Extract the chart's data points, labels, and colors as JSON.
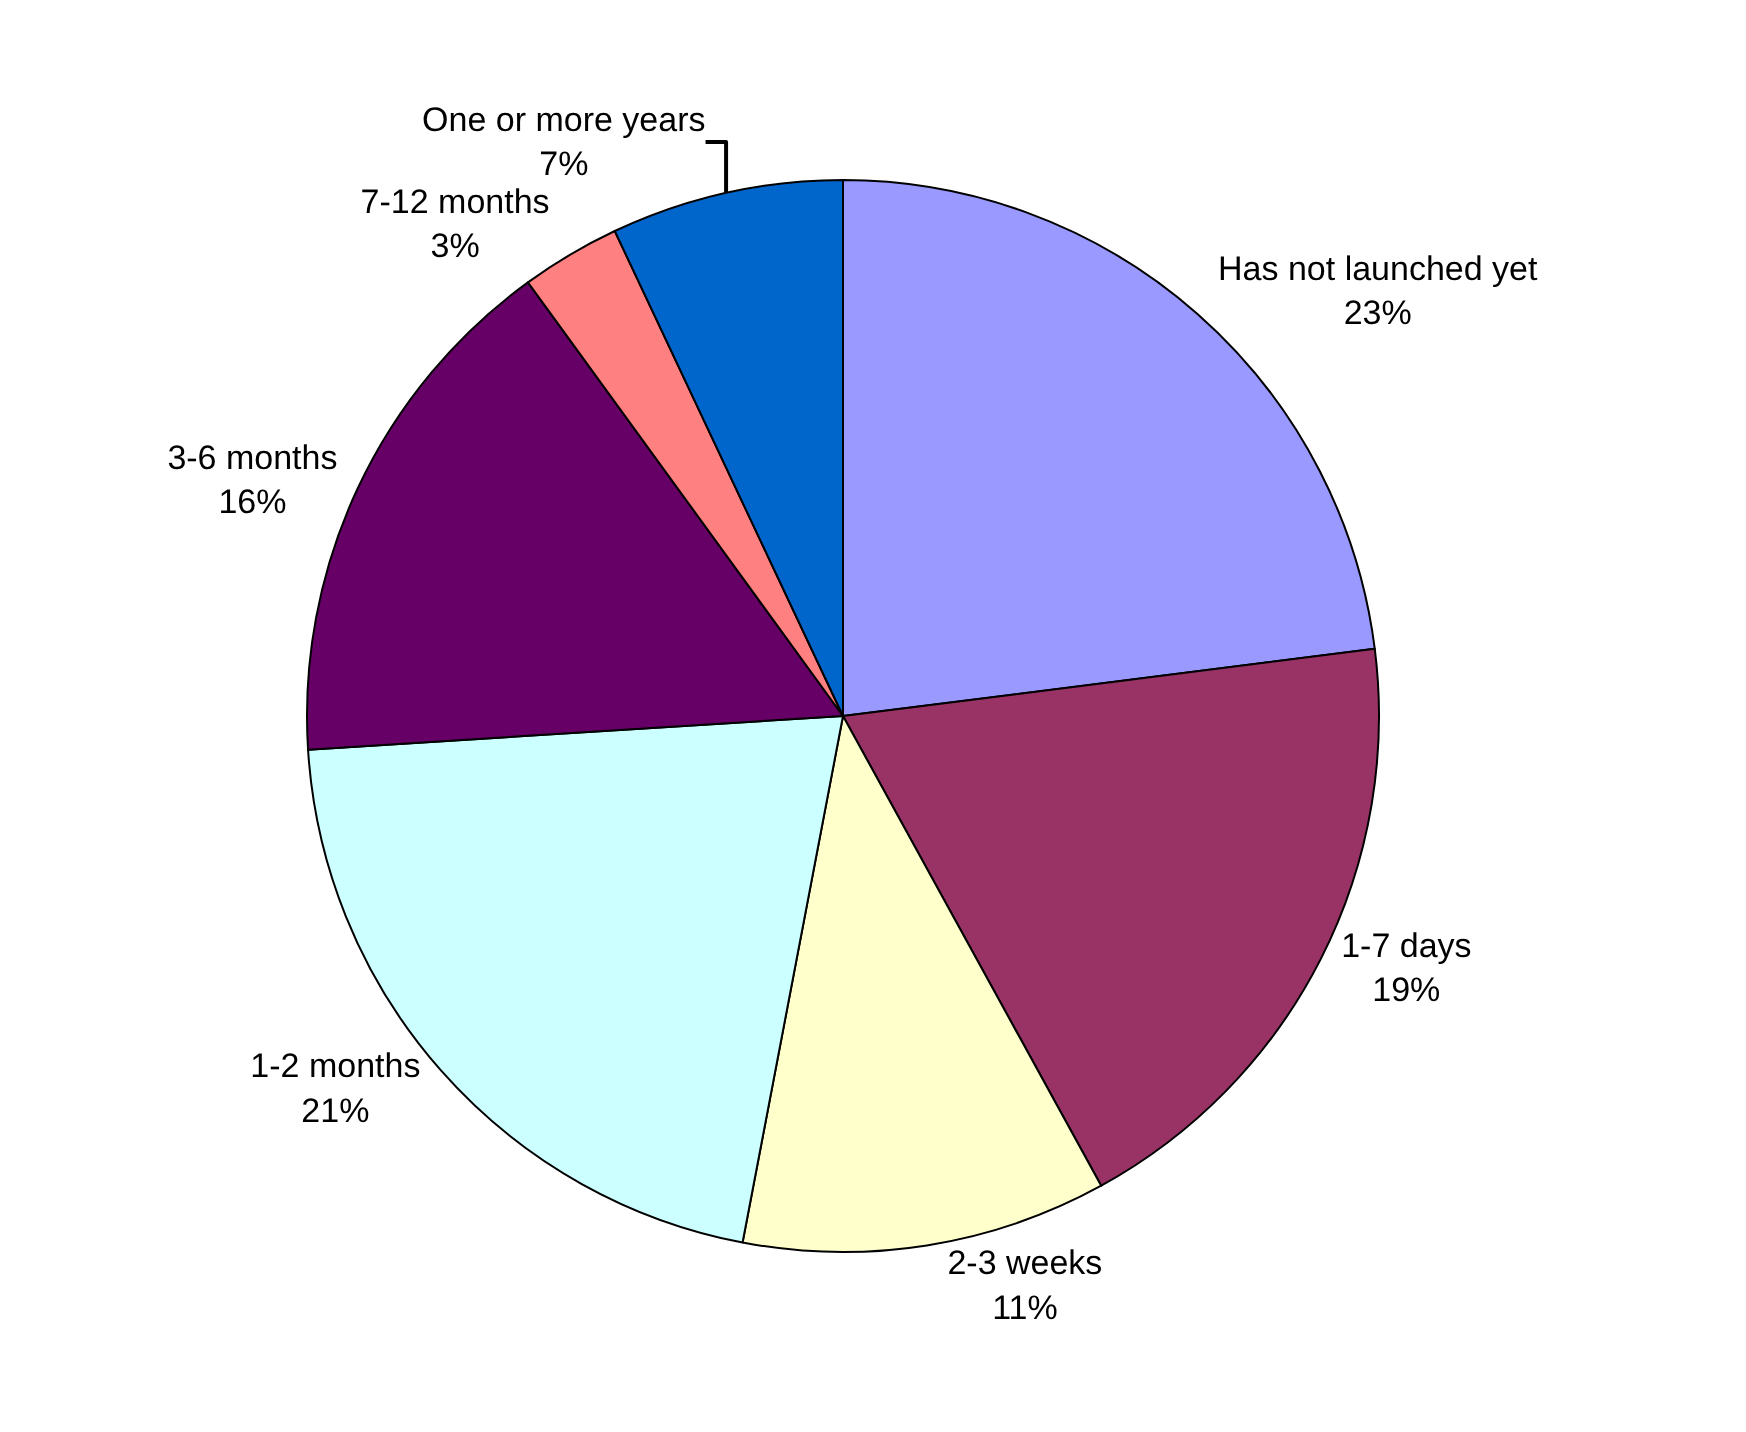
{
  "chart_data": {
    "type": "pie",
    "categories": [
      "Has not launched yet",
      "1-7 days",
      "2-3 weeks",
      "1-2 months",
      "3-6 months",
      "7-12 months",
      "One or more years"
    ],
    "values": [
      23,
      19,
      11,
      21,
      16,
      3,
      7
    ],
    "value_labels": [
      "23%",
      "19%",
      "11%",
      "21%",
      "16%",
      "3%",
      "7%"
    ],
    "colors": [
      "#9999ff",
      "#993366",
      "#ffffcc",
      "#ccffff",
      "#660066",
      "#ff8080",
      "#0066cc"
    ],
    "legend": false
  }
}
